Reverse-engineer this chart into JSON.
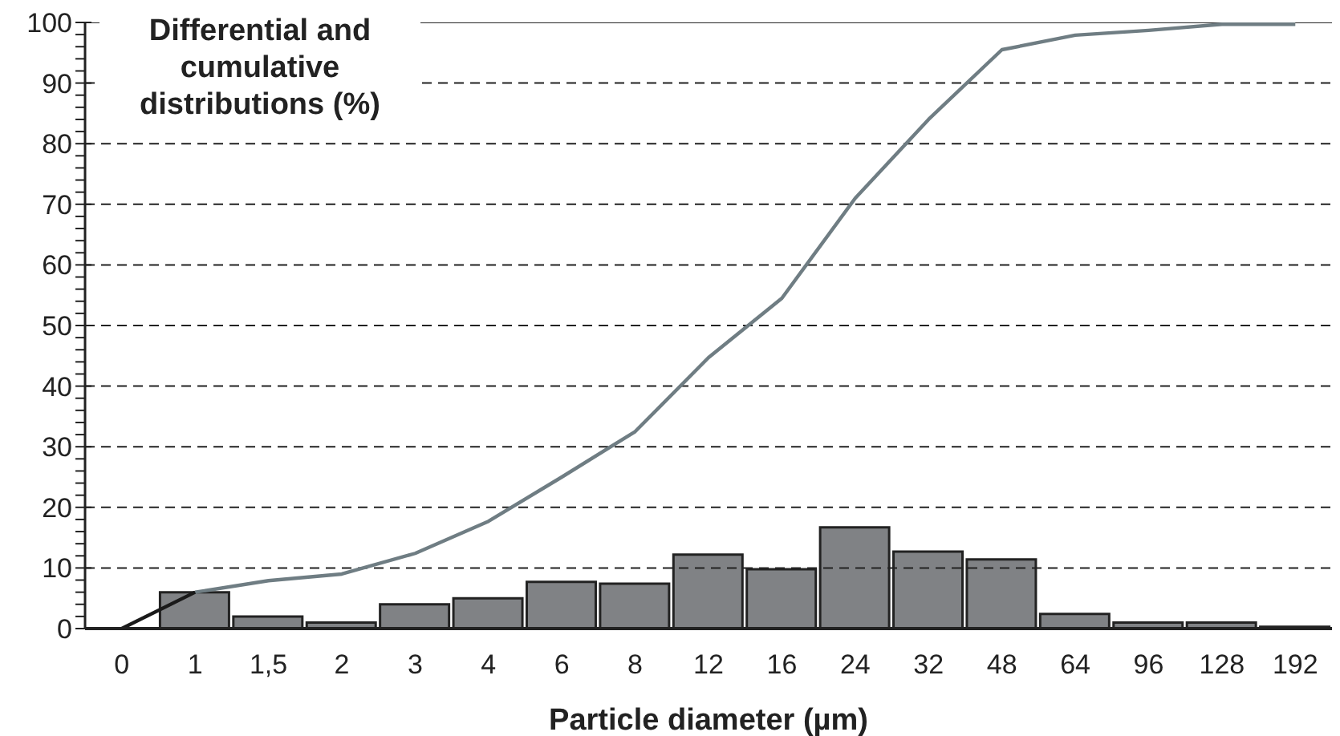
{
  "chart_data": {
    "type": "bar",
    "ylabel": "Differential and cumulative distributions (%)",
    "xlabel": "Particle diameter (µm)",
    "categories": [
      "0",
      "1",
      "1,5",
      "2",
      "3",
      "4",
      "6",
      "8",
      "12",
      "16",
      "24",
      "32",
      "48",
      "64",
      "96",
      "128",
      "192"
    ],
    "series": [
      {
        "color": "#808285",
        "values": [
          null,
          6,
          2,
          1,
          4,
          5,
          7.7,
          7.4,
          12.2,
          9.8,
          16.7,
          12.7,
          11.4,
          2.4,
          1,
          1,
          0.3
        ]
      },
      {
        "type": "line",
        "color": "#6f7d83",
        "values": [
          null,
          6,
          7.9,
          9,
          12.4,
          17.7,
          25,
          32.5,
          44.7,
          54.5,
          71,
          84,
          95.5,
          97.9,
          98.7,
          99.7,
          99.7
        ]
      },
      {
        "type": "line",
        "color": "#1a1a1a",
        "values": [
          0,
          6,
          null,
          null,
          null,
          null,
          null,
          null,
          null,
          null,
          null,
          null,
          null,
          null,
          null,
          null,
          null
        ]
      }
    ],
    "ylim": [
      0,
      100
    ],
    "yticks": [
      0,
      {
        "value": 2,
        "label": null
      },
      {
        "value": 4,
        "label": null
      },
      {
        "value": 6,
        "label": null
      },
      {
        "value": 8,
        "label": null
      },
      10,
      {
        "value": 12,
        "label": null
      },
      {
        "value": 14,
        "label": null
      },
      {
        "value": 16,
        "label": null
      },
      {
        "value": 18,
        "label": null
      },
      20,
      {
        "value": 22,
        "label": null
      },
      {
        "value": 24,
        "label": null
      },
      {
        "value": 26,
        "label": null
      },
      {
        "value": 28,
        "label": null
      },
      30,
      {
        "value": 32,
        "label": null
      },
      {
        "value": 34,
        "label": null
      },
      {
        "value": 36,
        "label": null
      },
      {
        "value": 38,
        "label": null
      },
      40,
      {
        "value": 42,
        "label": null
      },
      {
        "value": 44,
        "label": null
      },
      {
        "value": 46,
        "label": null
      },
      {
        "value": 48,
        "label": null
      },
      50,
      {
        "value": 52,
        "label": null
      },
      {
        "value": 54,
        "label": null
      },
      {
        "value": 56,
        "label": null
      },
      {
        "value": 58,
        "label": null
      },
      60,
      {
        "value": 62,
        "label": null
      },
      {
        "value": 64,
        "label": null
      },
      {
        "value": 66,
        "label": null
      },
      {
        "value": 68,
        "label": null
      },
      70,
      {
        "value": 72,
        "label": null
      },
      {
        "value": 74,
        "label": null
      },
      {
        "value": 76,
        "label": null
      },
      {
        "value": 78,
        "label": null
      },
      80,
      {
        "value": 82,
        "label": null
      },
      {
        "value": 84,
        "label": null
      },
      {
        "value": 86,
        "label": null
      },
      {
        "value": 88,
        "label": null
      },
      90,
      {
        "value": 92,
        "label": null
      },
      {
        "value": 94,
        "label": null
      },
      {
        "value": 96,
        "label": null
      },
      {
        "value": 98,
        "label": null
      },
      100
    ],
    "grid": "y",
    "marker": "none",
    "line_style": "solid"
  }
}
